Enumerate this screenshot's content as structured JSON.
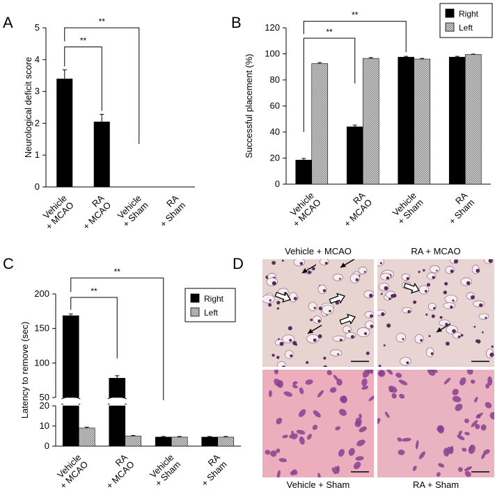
{
  "chart_data": [
    {
      "panel": "A",
      "type": "bar",
      "ylabel": "Neurological deficit score",
      "ylim": [
        0,
        5
      ],
      "yticks": [
        0,
        1,
        2,
        3,
        4,
        5
      ],
      "categories": [
        "Vehicle\n+ MCAO",
        "RA\n+ MCAO",
        "Vehicle\n+ Sham",
        "RA\n+ Sham"
      ],
      "series": [
        {
          "values": [
            3.4,
            2.05,
            0,
            0
          ],
          "errors": [
            0.28,
            0.23,
            0,
            0
          ],
          "color": "#000000"
        }
      ],
      "annotations": [
        {
          "text": "**",
          "from": 0,
          "to": 1
        },
        {
          "text": "**",
          "from": 0,
          "to": 2
        }
      ]
    },
    {
      "panel": "B",
      "type": "bar",
      "ylabel": "Successful placement (%)",
      "ylim": [
        0,
        120
      ],
      "yticks": [
        0,
        20,
        40,
        60,
        80,
        100,
        120
      ],
      "categories": [
        "Vehicle\n+ MCAO",
        "RA\n+ MCAO",
        "Vehicle\n+ Sham",
        "RA\n+ Sham"
      ],
      "legend_position": "top-right",
      "series": [
        {
          "name": "Right",
          "values": [
            18.5,
            44,
            97.5,
            97.5
          ],
          "errors": [
            1.2,
            1.3,
            0.6,
            0.6
          ],
          "color": "#000000",
          "pattern": "solid"
        },
        {
          "name": "Left",
          "values": [
            92.5,
            96.5,
            96,
            99.5
          ],
          "errors": [
            0.8,
            0.6,
            0.5,
            0.3
          ],
          "color": "#9a9a9a",
          "pattern": "checker"
        }
      ],
      "annotations": [
        {
          "text": "**",
          "from": 0,
          "to": 1
        },
        {
          "text": "**",
          "from": 0,
          "to": 2
        }
      ]
    },
    {
      "panel": "C",
      "type": "bar",
      "ylabel": "Latency to remove (sec)",
      "broken_axis": true,
      "upper_ylim": [
        50,
        200
      ],
      "upper_yticks": [
        50,
        100,
        150,
        200
      ],
      "lower_ylim": [
        0,
        20
      ],
      "lower_yticks": [
        0,
        10,
        20
      ],
      "categories": [
        "Vehicle\n+ MCAO",
        "RA\n+ MCAO",
        "Vehicle\n+ Sham",
        "RA\n+ Sham"
      ],
      "legend_position": "top-right",
      "series": [
        {
          "name": "Right",
          "values": [
            168.5,
            78,
            4.5,
            4.5
          ],
          "errors": [
            2.5,
            3.5,
            0.3,
            0.3
          ],
          "color": "#000000",
          "pattern": "solid"
        },
        {
          "name": "Left",
          "values": [
            9,
            5,
            4.5,
            4.5
          ],
          "errors": [
            0.4,
            0.3,
            0.3,
            0.3
          ],
          "color": "#9a9a9a",
          "pattern": "checker"
        }
      ],
      "annotations": [
        {
          "text": "**",
          "from": 0,
          "to": 1
        },
        {
          "text": "**",
          "from": 0,
          "to": 2
        }
      ]
    }
  ],
  "labels": {
    "a": "A",
    "b": "B",
    "c": "C",
    "d": "D"
  },
  "histology": {
    "tiles": [
      {
        "title": "Vehicle + MCAO",
        "stain": "#e7d3cf"
      },
      {
        "title": "RA + MCAO",
        "stain": "#e8d4d2"
      },
      {
        "title": "Vehicle + Sham",
        "stain": "#ecaebd"
      },
      {
        "title": "RA + Sham",
        "stain": "#eab3c1"
      }
    ]
  }
}
